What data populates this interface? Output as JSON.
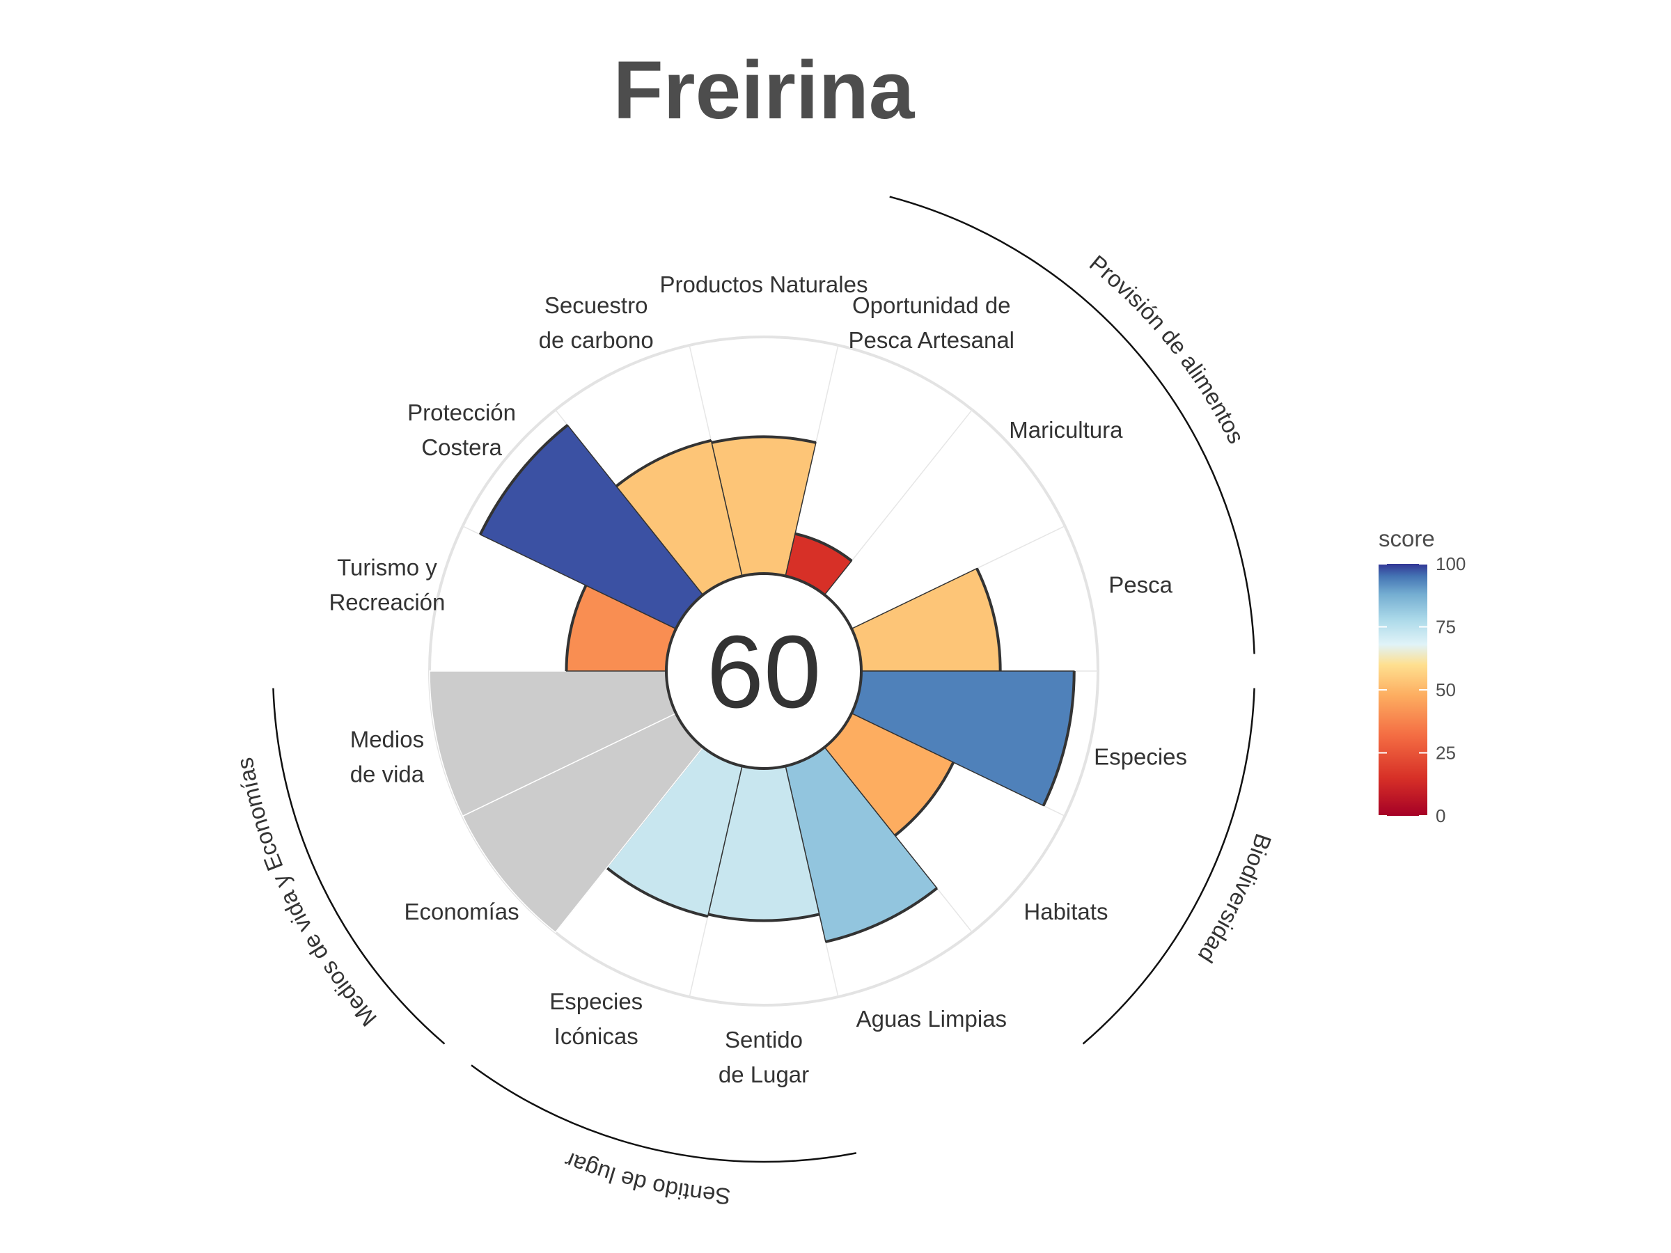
{
  "chart_data": {
    "type": "polar-bar",
    "title": "Freirina",
    "center_value": "60",
    "rmax": 100,
    "categories": [
      "Productos Naturales",
      "Oportunidad de\nPesca Artesanal",
      "Maricultura",
      "Pesca",
      "Especies",
      "Habitats",
      "Aguas Limpias",
      "Sentido\nde Lugar",
      "Especies\nIcónicas",
      "Economías",
      "Medios\nde vida",
      "Turismo y\nRecreación",
      "Protección\nCostera",
      "Secuestro\nde carbono"
    ],
    "scores": [
      63,
      20,
      null,
      64,
      98,
      52,
      83,
      70,
      71,
      null,
      null,
      46,
      100,
      64
    ],
    "fill_colors": [
      "#fdc577",
      "#d73027",
      null,
      "#fdc577",
      "#4f81ba",
      "#fdad60",
      "#92c5de",
      "#c8e6ef",
      "#c8e6ef",
      "#cccccc",
      "#cccccc",
      "#f98e52",
      "#3b51a3",
      "#fdc577"
    ],
    "groups": [
      {
        "name": "Provisión de alimentos",
        "goals": [
          "Oportunidad de\nPesca Artesanal",
          "Maricultura",
          "Pesca"
        ]
      },
      {
        "name": "Biodiversidad",
        "goals": [
          "Especies",
          "Habitats"
        ]
      },
      {
        "name": "Sentido de lugar",
        "goals": [
          "Sentido\nde Lugar",
          "Especies\nIcónicas"
        ]
      },
      {
        "name": "Medios de vida y Economías",
        "goals": [
          "Economías",
          "Medios\nde vida"
        ]
      }
    ],
    "legend": {
      "title": "score",
      "ticks": [
        "100",
        "75",
        "50",
        "25",
        "0"
      ],
      "placement": "right"
    },
    "colors": {
      "scale": [
        "#a50026",
        "#d73027",
        "#f46d43",
        "#fdae61",
        "#fee090",
        "#e0f3f8",
        "#abd9e9",
        "#74add1",
        "#4575b4",
        "#313695"
      ],
      "missing": "#cccccc"
    }
  }
}
